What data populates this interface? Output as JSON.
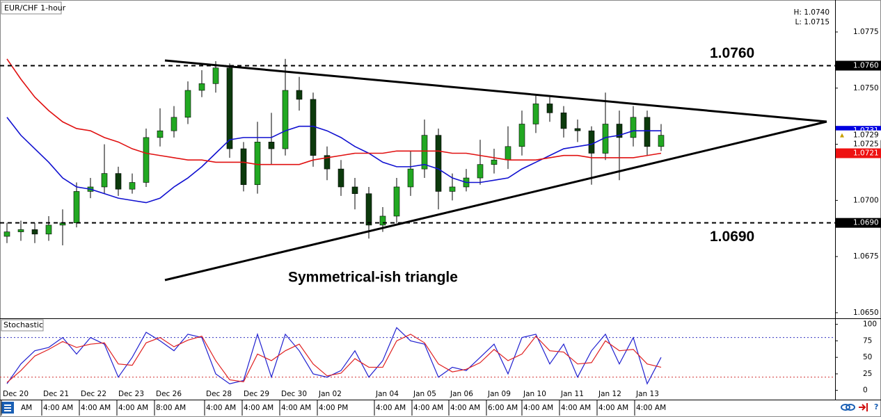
{
  "header": {
    "symbol": "EUR/CHF 1-hour",
    "high": "H: 1.0740",
    "low": "L: 1.0715"
  },
  "time_axis": {
    "dates": [
      "Dec 20",
      "Dec 21",
      "Dec 22",
      "Dec 23",
      "Dec 26",
      "Dec 28",
      "Dec 29",
      "Dec 30",
      "Jan 02",
      "Jan 04",
      "Jan 05",
      "Jan 06",
      "Jan 09",
      "Jan 10",
      "Jan 11",
      "Jan 12",
      "Jan 13"
    ],
    "times": [
      "AM",
      "4:00 AM",
      "4:00 AM",
      "4:00 AM",
      "8:00 AM",
      "4:00 AM",
      "4:00 AM",
      "4:00 AM",
      "4:00 PM",
      "4:00 AM",
      "4:00 AM",
      "4:00 AM",
      "6:00 AM",
      "4:00 AM",
      "4:00 AM",
      "4:00 AM",
      "4:00 AM"
    ]
  },
  "chart_data": [
    {
      "type": "candlestick",
      "annotation": "Symmetrical-ish triangle",
      "up_color": "#22a822",
      "down_color": "#0c3a0c",
      "open": [
        1.0684,
        1.0686,
        1.0687,
        1.0685,
        1.0689,
        1.069,
        1.0704,
        1.0706,
        1.0712,
        1.0705,
        1.0708,
        1.0728,
        1.0731,
        1.0737,
        1.0749,
        1.0752,
        1.0759,
        1.0723,
        1.0707,
        1.0726,
        1.0723,
        1.0749,
        1.0745,
        1.072,
        1.0714,
        1.0706,
        1.0703,
        1.0689,
        1.0693,
        1.0706,
        1.0714,
        1.0729,
        1.0704,
        1.0706,
        1.071,
        1.0716,
        1.0718,
        1.0724,
        1.0734,
        1.0743,
        1.0739,
        1.0732,
        1.0731,
        1.0721,
        1.0734,
        1.0728,
        1.0737,
        1.0724
      ],
      "high": [
        1.069,
        1.0691,
        1.069,
        1.0693,
        1.0696,
        1.0708,
        1.071,
        1.0725,
        1.0715,
        1.0712,
        1.0732,
        1.0741,
        1.0742,
        1.0753,
        1.0758,
        1.0762,
        1.0761,
        1.0726,
        1.0735,
        1.0739,
        1.0763,
        1.0755,
        1.0748,
        1.0724,
        1.0718,
        1.071,
        1.0706,
        1.0697,
        1.071,
        1.0722,
        1.0736,
        1.0732,
        1.0712,
        1.0714,
        1.0727,
        1.0723,
        1.0733,
        1.074,
        1.0747,
        1.0746,
        1.0742,
        1.0736,
        1.0733,
        1.0748,
        1.074,
        1.0742,
        1.074,
        1.0734
      ],
      "low": [
        1.0681,
        1.0682,
        1.0681,
        1.0682,
        1.068,
        1.0688,
        1.0701,
        1.0703,
        1.0702,
        1.0703,
        1.0706,
        1.0724,
        1.0728,
        1.0734,
        1.0746,
        1.0748,
        1.0719,
        1.0704,
        1.0703,
        1.0716,
        1.072,
        1.074,
        1.0715,
        1.0709,
        1.0702,
        1.0696,
        1.0683,
        1.0686,
        1.069,
        1.0702,
        1.071,
        1.0696,
        1.07,
        1.0704,
        1.0707,
        1.0712,
        1.0714,
        1.072,
        1.073,
        1.0735,
        1.0728,
        1.0726,
        1.0707,
        1.0718,
        1.0709,
        1.0724,
        1.072,
        1.0722
      ],
      "close": [
        1.0686,
        1.0687,
        1.0685,
        1.0689,
        1.069,
        1.0704,
        1.0706,
        1.0712,
        1.0705,
        1.0708,
        1.0728,
        1.0731,
        1.0737,
        1.0749,
        1.0752,
        1.0759,
        1.0723,
        1.0707,
        1.0726,
        1.0723,
        1.0749,
        1.0745,
        1.072,
        1.0714,
        1.0706,
        1.0703,
        1.0689,
        1.0693,
        1.0706,
        1.0714,
        1.0729,
        1.0704,
        1.0706,
        1.071,
        1.0716,
        1.0718,
        1.0724,
        1.0734,
        1.0743,
        1.0739,
        1.0732,
        1.0731,
        1.0721,
        1.0734,
        1.0728,
        1.0737,
        1.0724,
        1.0729
      ],
      "series": [
        {
          "color": "#1010d0",
          "tag_color": "#0000e0",
          "values": [
            1.0737,
            1.0729,
            1.0723,
            1.0717,
            1.071,
            1.0706,
            1.0705,
            1.0703,
            1.0701,
            1.07,
            1.0699,
            1.0701,
            1.0706,
            1.071,
            1.0715,
            1.0721,
            1.0727,
            1.0728,
            1.0728,
            1.0728,
            1.0731,
            1.0733,
            1.0733,
            1.0731,
            1.0728,
            1.0724,
            1.0721,
            1.0717,
            1.0715,
            1.0715,
            1.0716,
            1.0714,
            1.071,
            1.0708,
            1.0708,
            1.0709,
            1.071,
            1.0714,
            1.0717,
            1.072,
            1.0723,
            1.0724,
            1.0725,
            1.0728,
            1.0729,
            1.0731,
            1.0731,
            1.0731
          ]
        },
        {
          "color": "#e01010",
          "tag_color": "#ee1111",
          "values": [
            1.0763,
            1.0754,
            1.0746,
            1.074,
            1.0735,
            1.0732,
            1.0731,
            1.0728,
            1.0726,
            1.0723,
            1.0721,
            1.072,
            1.0719,
            1.0718,
            1.0718,
            1.0717,
            1.0717,
            1.0717,
            1.0716,
            1.0716,
            1.0716,
            1.0716,
            1.0718,
            1.0719,
            1.072,
            1.0721,
            1.0721,
            1.0721,
            1.0722,
            1.0722,
            1.0722,
            1.0722,
            1.0721,
            1.0721,
            1.072,
            1.0719,
            1.0718,
            1.0718,
            1.0718,
            1.0719,
            1.072,
            1.072,
            1.0719,
            1.0719,
            1.0719,
            1.0719,
            1.072,
            1.0721
          ]
        }
      ],
      "levels": [
        {
          "value": 1.076,
          "label": "1.0760"
        },
        {
          "value": 1.069,
          "label": "1.0690"
        }
      ],
      "ylim": [
        1.06475,
        1.0788
      ],
      "yticks": [
        1.0775,
        {
          "value": 1.075,
          "label": "1.0750"
        },
        1.0725,
        {
          "value": 1.07,
          "label": "1.0700"
        },
        1.0675,
        {
          "value": 1.065,
          "label": "1.0650"
        }
      ]
    },
    {
      "type": "line",
      "title": "Stochastic",
      "series": [
        {
          "color": "#2020d0",
          "values": [
            10,
            40,
            60,
            65,
            80,
            55,
            80,
            70,
            20,
            50,
            88,
            75,
            60,
            85,
            80,
            25,
            10,
            15,
            85,
            20,
            85,
            60,
            25,
            20,
            30,
            60,
            20,
            45,
            95,
            75,
            70,
            20,
            35,
            30,
            50,
            70,
            25,
            80,
            85,
            40,
            70,
            20,
            60,
            85,
            40,
            80,
            10,
            50
          ]
        },
        {
          "color": "#e02020",
          "values": [
            12,
            30,
            52,
            62,
            74,
            65,
            70,
            72,
            40,
            38,
            72,
            80,
            66,
            76,
            82,
            45,
            16,
            13,
            55,
            45,
            60,
            70,
            40,
            22,
            26,
            48,
            35,
            35,
            75,
            85,
            72,
            40,
            28,
            32,
            42,
            62,
            45,
            55,
            82,
            60,
            58,
            40,
            42,
            75,
            60,
            62,
            40,
            35
          ]
        }
      ],
      "levels": [
        {
          "value": 80,
          "color": "#3030c0"
        },
        {
          "value": 20,
          "color": "#d03030"
        }
      ],
      "ylim": [
        -14,
        107
      ],
      "yticks": [
        100,
        75,
        50,
        25,
        0
      ]
    }
  ]
}
